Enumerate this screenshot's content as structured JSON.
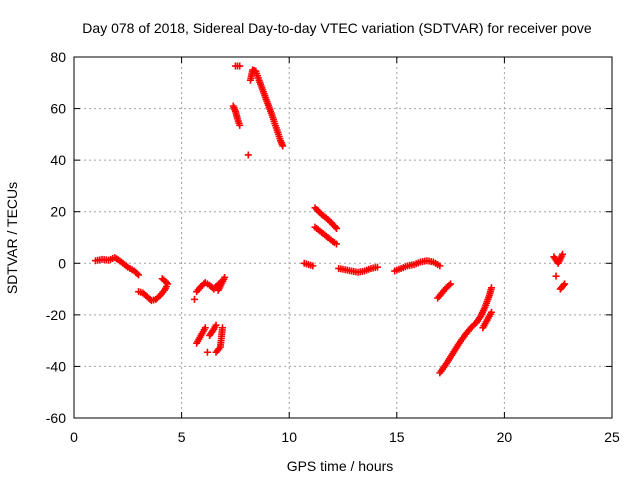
{
  "chart_data": {
    "type": "scatter",
    "title": "Day 078 of 2018, Sidereal Day-to-day VTEC variation (SDTVAR) for receiver pove",
    "xlabel": "GPS time / hours",
    "ylabel": "SDTVAR / TECUs",
    "xlim": [
      0,
      25
    ],
    "ylim": [
      -60,
      80
    ],
    "xticks": [
      0,
      5,
      10,
      15,
      20,
      25
    ],
    "yticks": [
      -60,
      -40,
      -20,
      0,
      20,
      40,
      60,
      80
    ],
    "xtick_labels": [
      "0",
      "5",
      "10",
      "15",
      "20",
      "25"
    ],
    "ytick_labels": [
      "-60",
      "-40",
      "-20",
      "0",
      "20",
      "40",
      "60",
      "80"
    ],
    "grid": true,
    "marker": "plus",
    "color": "#ff0000",
    "segments": [
      {
        "name": "seg-01",
        "points": [
          [
            1.0,
            1.0
          ],
          [
            1.3,
            1.5
          ],
          [
            1.6,
            1.2
          ],
          [
            1.9,
            2.2
          ],
          [
            2.2,
            0.5
          ],
          [
            2.5,
            -1.5
          ],
          [
            2.8,
            -3.0
          ],
          [
            3.0,
            -4.5
          ]
        ]
      },
      {
        "name": "seg-02",
        "points": [
          [
            3.0,
            -11.0
          ],
          [
            3.2,
            -11.5
          ],
          [
            3.4,
            -13.0
          ],
          [
            3.6,
            -14.5
          ],
          [
            3.8,
            -14.0
          ],
          [
            4.0,
            -12.5
          ],
          [
            4.2,
            -10.5
          ],
          [
            4.3,
            -9.0
          ]
        ]
      },
      {
        "name": "seg-03",
        "points": [
          [
            4.1,
            -6.0
          ],
          [
            4.25,
            -7.0
          ],
          [
            4.35,
            -8.0
          ]
        ]
      },
      {
        "name": "seg-04",
        "points": [
          [
            5.6,
            -14.0
          ]
        ]
      },
      {
        "name": "seg-05",
        "points": [
          [
            5.7,
            -11.0
          ],
          [
            5.9,
            -9.0
          ],
          [
            6.1,
            -7.5
          ],
          [
            6.3,
            -8.5
          ],
          [
            6.5,
            -10.0
          ]
        ]
      },
      {
        "name": "seg-06",
        "points": [
          [
            6.6,
            -9.0
          ],
          [
            6.8,
            -7.5
          ],
          [
            6.7,
            -10.5
          ],
          [
            7.0,
            -5.5
          ]
        ]
      },
      {
        "name": "seg-07",
        "points": [
          [
            5.7,
            -31.0
          ],
          [
            5.9,
            -28.0
          ],
          [
            6.1,
            -25.0
          ]
        ]
      },
      {
        "name": "seg-08",
        "points": [
          [
            6.2,
            -34.5
          ]
        ]
      },
      {
        "name": "seg-09",
        "points": [
          [
            6.3,
            -28.0
          ],
          [
            6.5,
            -25.5
          ],
          [
            6.6,
            -24.0
          ]
        ]
      },
      {
        "name": "seg-10",
        "points": [
          [
            6.6,
            -34.5
          ],
          [
            6.8,
            -32.5
          ],
          [
            6.9,
            -25.0
          ]
        ]
      },
      {
        "name": "seg-11",
        "points": [
          [
            7.4,
            61.0
          ],
          [
            7.5,
            59.0
          ],
          [
            7.6,
            56.0
          ],
          [
            7.7,
            53.5
          ]
        ]
      },
      {
        "name": "seg-12",
        "points": [
          [
            7.5,
            76.5
          ],
          [
            7.7,
            76.5
          ]
        ]
      },
      {
        "name": "seg-13",
        "points": [
          [
            8.1,
            42.0
          ]
        ]
      },
      {
        "name": "seg-14",
        "points": [
          [
            8.2,
            71.0
          ],
          [
            8.3,
            75.0
          ],
          [
            8.45,
            74.5
          ],
          [
            8.6,
            71.0
          ],
          [
            8.8,
            66.5
          ],
          [
            9.0,
            62.0
          ],
          [
            9.2,
            57.5
          ],
          [
            9.4,
            52.5
          ],
          [
            9.6,
            47.5
          ],
          [
            9.7,
            45.5
          ]
        ]
      },
      {
        "name": "seg-15",
        "points": [
          [
            10.7,
            0.0
          ],
          [
            10.9,
            -0.5
          ],
          [
            11.1,
            -1.0
          ]
        ]
      },
      {
        "name": "seg-16",
        "points": [
          [
            11.2,
            21.5
          ],
          [
            11.5,
            19.0
          ],
          [
            11.8,
            17.0
          ],
          [
            12.1,
            14.5
          ],
          [
            12.2,
            13.5
          ]
        ]
      },
      {
        "name": "seg-17",
        "points": [
          [
            11.2,
            14.0
          ],
          [
            11.5,
            12.0
          ],
          [
            11.8,
            10.0
          ],
          [
            12.1,
            8.0
          ],
          [
            12.2,
            7.5
          ]
        ]
      },
      {
        "name": "seg-18",
        "points": [
          [
            12.3,
            -2.0
          ],
          [
            12.6,
            -2.5
          ],
          [
            12.9,
            -3.0
          ],
          [
            13.2,
            -3.5
          ],
          [
            13.5,
            -3.0
          ],
          [
            13.8,
            -2.0
          ],
          [
            14.1,
            -1.5
          ]
        ]
      },
      {
        "name": "seg-19",
        "points": [
          [
            14.9,
            -3.0
          ],
          [
            15.2,
            -2.0
          ],
          [
            15.5,
            -1.0
          ],
          [
            15.8,
            -0.5
          ],
          [
            16.1,
            0.5
          ],
          [
            16.4,
            1.0
          ],
          [
            16.7,
            0.5
          ],
          [
            16.9,
            -0.5
          ],
          [
            17.0,
            -1.0
          ]
        ]
      },
      {
        "name": "seg-20",
        "points": [
          [
            16.9,
            -13.5
          ],
          [
            17.1,
            -11.5
          ],
          [
            17.3,
            -9.5
          ],
          [
            17.5,
            -8.0
          ]
        ]
      },
      {
        "name": "seg-21",
        "points": [
          [
            17.0,
            -42.5
          ],
          [
            17.3,
            -39.0
          ],
          [
            17.6,
            -35.0
          ],
          [
            17.9,
            -31.0
          ],
          [
            18.2,
            -27.5
          ],
          [
            18.5,
            -24.5
          ],
          [
            18.7,
            -23.0
          ],
          [
            18.9,
            -20.5
          ],
          [
            19.1,
            -17.0
          ],
          [
            19.3,
            -12.5
          ],
          [
            19.4,
            -9.5
          ]
        ]
      },
      {
        "name": "seg-22",
        "points": [
          [
            19.0,
            -25.0
          ],
          [
            19.2,
            -22.0
          ],
          [
            19.4,
            -19.0
          ]
        ]
      },
      {
        "name": "seg-23",
        "points": [
          [
            22.3,
            2.5
          ],
          [
            22.5,
            0.0
          ],
          [
            22.7,
            3.5
          ]
        ]
      },
      {
        "name": "seg-24",
        "points": [
          [
            22.4,
            -5.0
          ]
        ]
      },
      {
        "name": "seg-25",
        "points": [
          [
            22.6,
            -10.0
          ],
          [
            22.7,
            -9.0
          ],
          [
            22.8,
            -8.0
          ]
        ]
      }
    ]
  }
}
